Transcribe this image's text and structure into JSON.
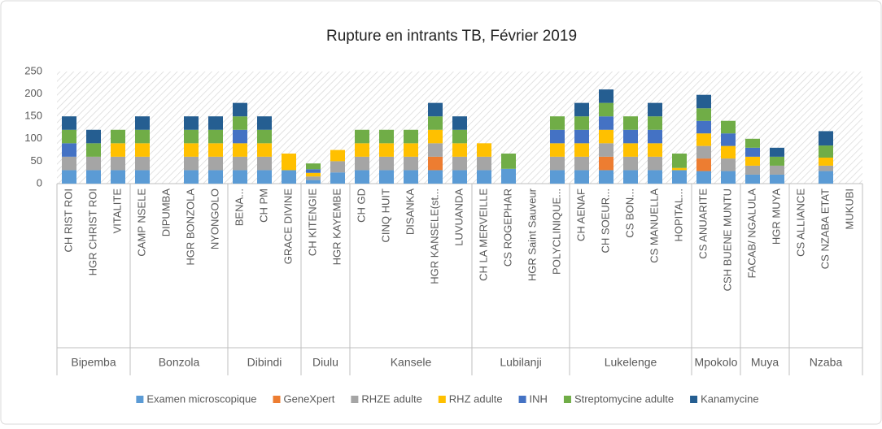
{
  "chart_data": {
    "type": "bar",
    "stacked": true,
    "title": "Rupture en intrants TB, Février 2019",
    "groups": [
      {
        "name": "Bipemba",
        "categories": [
          "CH RIST ROI",
          "HGR CHRIST ROI",
          "VITALITE"
        ]
      },
      {
        "name": "Bonzola",
        "categories": [
          "CAMP NSELE",
          "DIPUMBA",
          "HGR BONZOLA",
          "NYONGOLO"
        ]
      },
      {
        "name": "Dibindi",
        "categories": [
          "BENA...",
          "CH PM",
          "GRACE DIVINE"
        ]
      },
      {
        "name": "Diulu",
        "categories": [
          "CH KITENGIE",
          "HGR KAYEMBE"
        ]
      },
      {
        "name": "Kansele",
        "categories": [
          "CH GD",
          "CINQ HUIT",
          "DISANKA",
          "HGR KANSELE(st...",
          "LUVUANDA"
        ]
      },
      {
        "name": "Lubilanji",
        "categories": [
          "CH LA MERVEILLE",
          "CS ROGEPHAR",
          "HGR Saint Sauveur",
          "POLYCLINIQUE..."
        ]
      },
      {
        "name": "Lukelenge",
        "categories": [
          "CH AENAF",
          "CH SOEUR...",
          "CS BON...",
          "CS MANUELLA",
          "HOPITAL..."
        ]
      },
      {
        "name": "Mpokolo",
        "categories": [
          "CS ANUARITE",
          "CSH BUENE MUNTU"
        ]
      },
      {
        "name": "Muya",
        "categories": [
          "FACAB/ NGALULA",
          "HGR MUYA"
        ]
      },
      {
        "name": "Nzaba",
        "categories": [
          "CS ALLIANCE",
          "CS NZABA ETAT",
          "MUKUBI"
        ]
      }
    ],
    "series": [
      {
        "name": "Examen microscopique",
        "color": "#5b9bd5",
        "values": [
          30,
          30,
          30,
          30,
          0,
          30,
          30,
          30,
          30,
          30,
          8,
          25,
          30,
          30,
          30,
          30,
          30,
          30,
          33,
          0,
          30,
          30,
          30,
          30,
          30,
          30,
          28,
          28,
          20,
          20,
          0,
          28,
          0
        ]
      },
      {
        "name": "GeneXpert",
        "color": "#ed7d31",
        "values": [
          0,
          0,
          0,
          0,
          0,
          0,
          0,
          0,
          0,
          0,
          0,
          0,
          0,
          0,
          0,
          30,
          0,
          0,
          0,
          0,
          0,
          0,
          30,
          0,
          0,
          0,
          28,
          0,
          0,
          0,
          0,
          0,
          0
        ]
      },
      {
        "name": "RHZE adulte",
        "color": "#a5a5a5",
        "values": [
          30,
          30,
          30,
          30,
          0,
          30,
          30,
          30,
          30,
          0,
          8,
          25,
          30,
          30,
          30,
          30,
          30,
          30,
          0,
          0,
          30,
          30,
          30,
          30,
          30,
          0,
          28,
          28,
          20,
          20,
          0,
          12,
          0
        ]
      },
      {
        "name": "RHZ adulte",
        "color": "#ffc000",
        "values": [
          0,
          0,
          30,
          30,
          0,
          30,
          30,
          30,
          30,
          37,
          8,
          25,
          30,
          30,
          30,
          30,
          30,
          30,
          0,
          0,
          30,
          30,
          30,
          30,
          30,
          5,
          28,
          28,
          20,
          0,
          0,
          18,
          0
        ]
      },
      {
        "name": "INH",
        "color": "#4472c4",
        "values": [
          30,
          0,
          0,
          0,
          0,
          0,
          0,
          30,
          0,
          0,
          8,
          0,
          0,
          0,
          0,
          0,
          0,
          0,
          0,
          0,
          30,
          30,
          30,
          30,
          30,
          0,
          28,
          28,
          20,
          0,
          0,
          0,
          0
        ]
      },
      {
        "name": "Streptomycine adulte",
        "color": "#70ad47",
        "values": [
          30,
          30,
          30,
          30,
          0,
          30,
          30,
          30,
          30,
          0,
          13,
          0,
          30,
          30,
          30,
          30,
          30,
          0,
          34,
          0,
          30,
          30,
          30,
          30,
          30,
          32,
          28,
          28,
          20,
          20,
          0,
          27,
          0
        ]
      },
      {
        "name": "Kanamycine",
        "color": "#255e91",
        "values": [
          30,
          30,
          0,
          30,
          0,
          30,
          30,
          30,
          30,
          0,
          0,
          0,
          0,
          0,
          0,
          30,
          30,
          0,
          0,
          0,
          0,
          30,
          30,
          0,
          30,
          0,
          30,
          0,
          0,
          20,
          0,
          32,
          0
        ]
      }
    ],
    "ylim": [
      0,
      250
    ],
    "yticks": [
      0,
      50,
      100,
      150,
      200,
      250
    ]
  }
}
